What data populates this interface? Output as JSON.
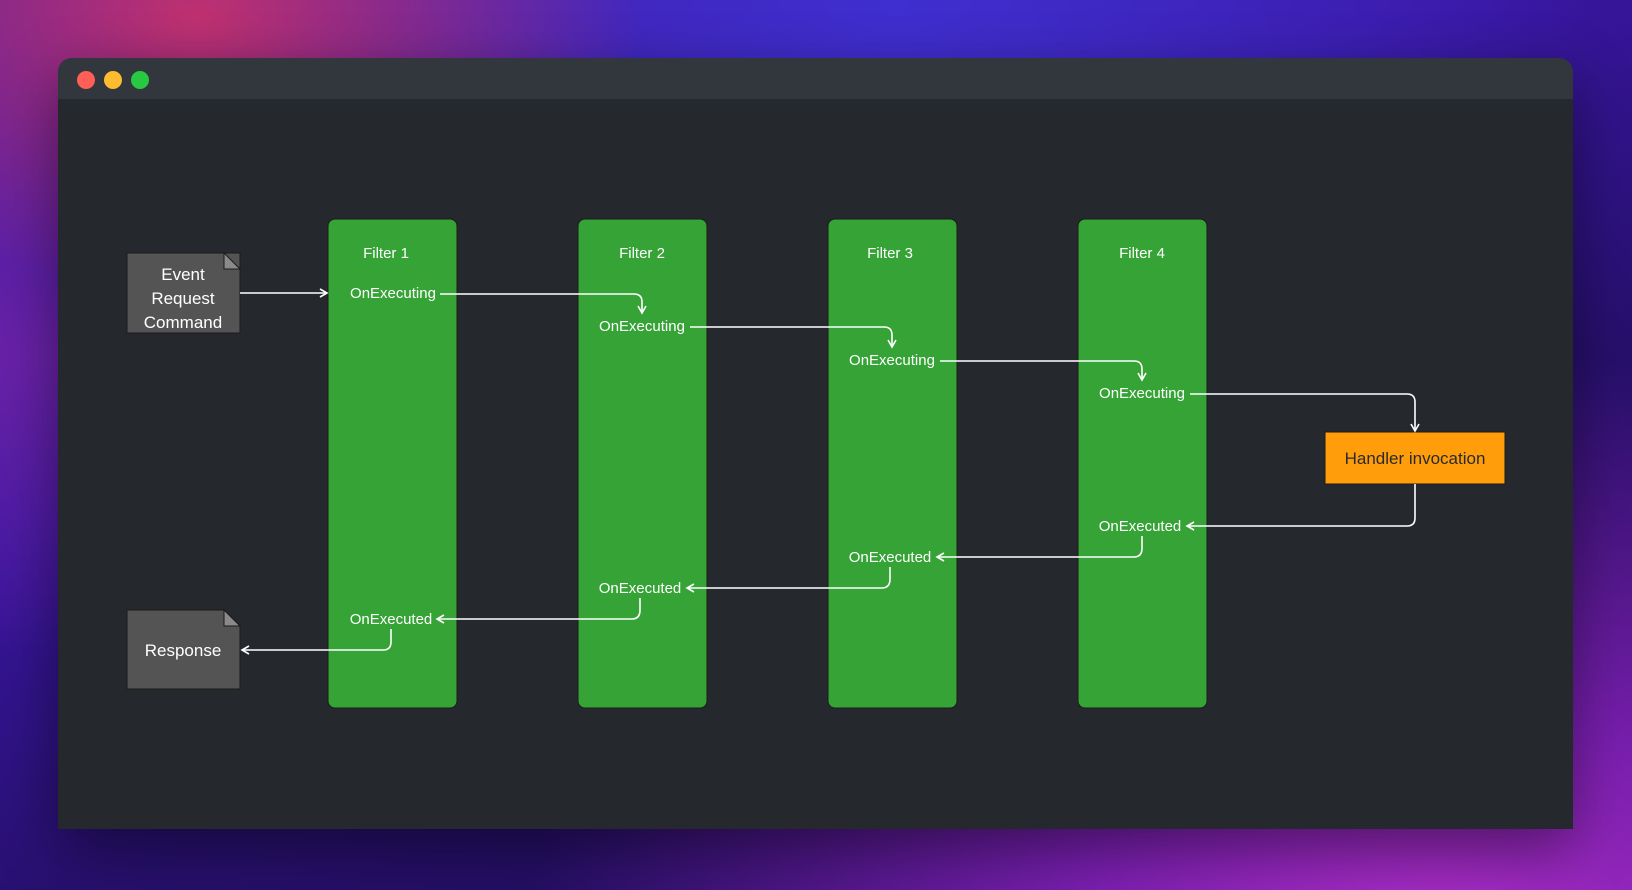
{
  "colors": {
    "window_bg": "#25292e",
    "titlebar": "#32363d",
    "filter_fill": "#35a335",
    "handler_fill": "#ff9e0a",
    "doc_fill": "#545454",
    "arrow": "#ffffff"
  },
  "input_doc": {
    "lines": [
      "Event",
      "Request",
      "Command"
    ]
  },
  "response_doc": {
    "label": "Response"
  },
  "filters": [
    {
      "title": "Filter 1",
      "executing": "OnExecuting",
      "executed": "OnExecuted"
    },
    {
      "title": "Filter 2",
      "executing": "OnExecuting",
      "executed": "OnExecuted"
    },
    {
      "title": "Filter 3",
      "executing": "OnExecuting",
      "executed": "OnExecuted"
    },
    {
      "title": "Filter 4",
      "executing": "OnExecuting",
      "executed": "OnExecuted"
    }
  ],
  "handler": {
    "label": "Handler invocation"
  }
}
